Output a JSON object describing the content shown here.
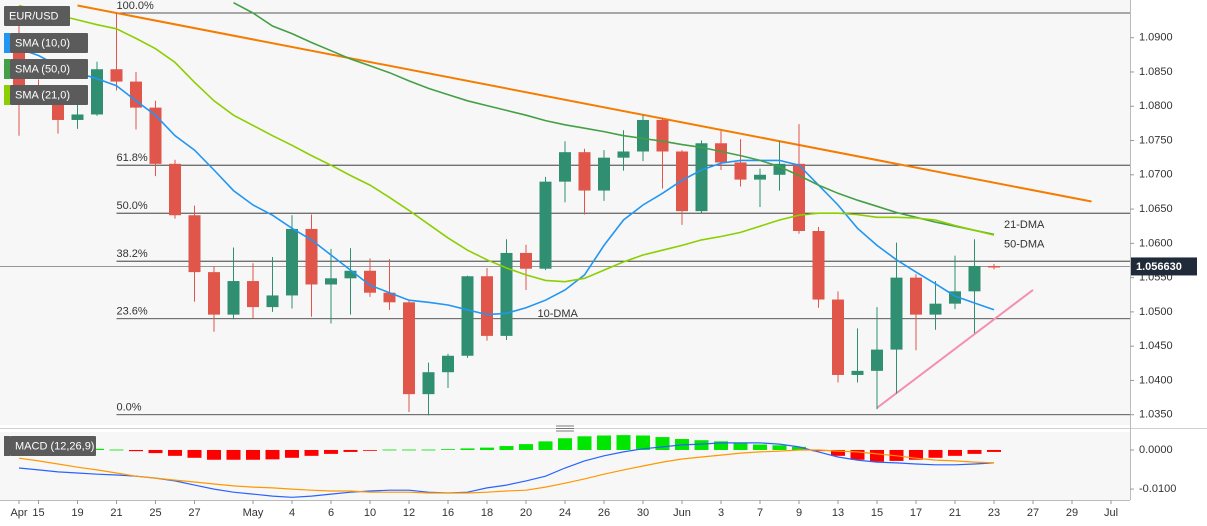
{
  "chart_data": [
    {
      "type": "candlestick",
      "title": "EUR/USD",
      "categories": [
        "Apr",
        "15",
        null,
        "19",
        null,
        "21",
        null,
        "25",
        null,
        "27",
        null,
        null,
        "May",
        null,
        "4",
        null,
        "6",
        null,
        "10",
        null,
        "12",
        null,
        "16",
        null,
        "18",
        null,
        "20",
        null,
        "24",
        null,
        "26",
        null,
        "30",
        null,
        "Jun",
        null,
        "3",
        null,
        "7",
        null,
        "9",
        null,
        "13",
        null,
        "15",
        null,
        "17",
        null,
        "21",
        null,
        "23",
        null,
        "27",
        null,
        "29",
        null,
        "Jul"
      ],
      "open": [
        1.089,
        1.0826,
        1.0808,
        1.078,
        1.0788,
        1.0854,
        1.0836,
        1.0798,
        1.0716,
        1.0641,
        1.0558,
        1.0496,
        1.0545,
        1.0507,
        1.0524,
        1.0621,
        1.054,
        1.0549,
        1.056,
        1.0528,
        1.0514,
        1.038,
        1.0412,
        1.0436,
        1.0552,
        1.0465,
        1.0586,
        1.0563,
        1.069,
        1.0733,
        1.0677,
        1.0725,
        1.0734,
        1.078,
        1.0734,
        1.0647,
        1.0746,
        1.0718,
        1.0693,
        1.07,
        1.0716,
        1.0618,
        1.0518,
        1.0408,
        1.0414,
        1.0445,
        1.055,
        1.0496,
        1.0512,
        1.053,
        1.0567,
        null,
        null,
        null,
        null,
        null,
        null
      ],
      "high": [
        1.0924,
        1.0839,
        1.0817,
        1.0807,
        1.0865,
        1.0936,
        1.085,
        1.0808,
        1.0722,
        1.0655,
        1.0567,
        1.0594,
        1.0571,
        1.058,
        1.0641,
        1.0642,
        1.0592,
        1.0593,
        1.0578,
        1.0577,
        1.0516,
        1.0426,
        1.0439,
        1.0553,
        1.0564,
        1.0606,
        1.0598,
        1.0697,
        1.0749,
        1.0738,
        1.0736,
        1.0765,
        1.0787,
        1.0783,
        1.0736,
        1.075,
        1.0764,
        1.0752,
        1.0709,
        1.0749,
        1.0774,
        1.0624,
        1.053,
        1.0476,
        1.0507,
        1.0601,
        1.0555,
        1.0545,
        1.0582,
        1.0606,
        1.057,
        null,
        null,
        null,
        null,
        null,
        null
      ],
      "low": [
        1.0757,
        1.0804,
        1.076,
        1.0767,
        1.0786,
        1.0823,
        1.0766,
        1.0698,
        1.0636,
        1.0515,
        1.0471,
        1.0489,
        1.049,
        1.05,
        1.0505,
        1.0493,
        1.0483,
        1.0496,
        1.0522,
        1.0503,
        1.0354,
        1.0349,
        1.0389,
        1.0433,
        1.0458,
        1.0459,
        1.0532,
        1.0561,
        1.066,
        1.0642,
        1.0662,
        1.0706,
        1.072,
        1.068,
        1.0627,
        1.0644,
        1.0707,
        1.0683,
        1.0653,
        1.0677,
        1.0614,
        1.0506,
        1.0397,
        1.0397,
        1.0358,
        1.0381,
        1.0444,
        1.0474,
        1.0504,
        1.0469,
        1.0562,
        null,
        null,
        null,
        null,
        null,
        null
      ],
      "close": [
        1.0826,
        1.0808,
        1.078,
        1.0788,
        1.0854,
        1.0836,
        1.0798,
        1.0716,
        1.0641,
        1.0558,
        1.0496,
        1.0545,
        1.0507,
        1.0524,
        1.0621,
        1.054,
        1.0549,
        1.056,
        1.0528,
        1.0514,
        1.038,
        1.0412,
        1.0436,
        1.0552,
        1.0465,
        1.0586,
        1.0563,
        1.069,
        1.0733,
        1.0677,
        1.0725,
        1.0734,
        1.078,
        1.0734,
        1.0647,
        1.0746,
        1.0718,
        1.0693,
        1.07,
        1.0716,
        1.0618,
        1.0518,
        1.0408,
        1.0414,
        1.0445,
        1.055,
        1.0496,
        1.0512,
        1.053,
        1.0567,
        1.0566,
        null,
        null,
        null,
        null,
        null,
        null
      ],
      "up_color": "#2f8f70",
      "down_color": "#e0564b",
      "series": [
        {
          "name": "SMA (10,0)",
          "label": "10-DMA",
          "color": "#2196f3",
          "values": [
            1.0884,
            1.0874,
            1.0859,
            1.0849,
            1.084,
            1.083,
            1.0808,
            1.0787,
            1.0757,
            1.0736,
            1.0707,
            1.0677,
            1.0656,
            1.0641,
            1.0622,
            1.0605,
            1.0583,
            1.0561,
            1.0539,
            1.0528,
            1.0517,
            1.0514,
            1.051,
            1.0503,
            1.0496,
            1.0498,
            1.0506,
            1.0517,
            1.0532,
            1.0554,
            1.0597,
            1.0634,
            1.0656,
            1.0673,
            1.0692,
            1.0707,
            1.0717,
            1.0721,
            1.0721,
            1.0721,
            1.0714,
            1.0685,
            1.0656,
            1.0622,
            1.0597,
            1.0576,
            1.0558,
            1.0541,
            1.0523,
            1.0513,
            1.0503,
            null,
            null,
            null,
            null,
            null,
            null
          ]
        },
        {
          "name": "SMA (50,0)",
          "label": "50-DMA",
          "color": "#43a047",
          "values": [
            null,
            null,
            null,
            null,
            null,
            null,
            null,
            null,
            null,
            null,
            null,
            1.0951,
            1.0936,
            1.0917,
            1.0906,
            1.0893,
            1.0881,
            1.0869,
            1.0859,
            1.0849,
            1.0837,
            1.0826,
            1.0817,
            1.0808,
            1.0801,
            1.0794,
            1.0787,
            1.0779,
            1.0773,
            1.0768,
            1.0763,
            1.0757,
            1.0753,
            1.0749,
            1.0744,
            1.074,
            1.0734,
            1.0728,
            1.0721,
            1.0712,
            1.0699,
            1.0685,
            1.0673,
            1.0663,
            1.0654,
            1.0645,
            1.0638,
            1.0631,
            1.0625,
            1.0619,
            1.0613,
            null,
            null,
            null,
            null,
            null,
            null
          ]
        },
        {
          "name": "SMA (21,0)",
          "label": "21-DMA",
          "color": "#8ccf00",
          "values": [
            1.0947,
            1.0939,
            1.0933,
            1.0926,
            1.0919,
            1.0913,
            1.0899,
            1.0884,
            1.0864,
            1.0835,
            1.0808,
            1.0787,
            1.0772,
            1.0757,
            1.0743,
            1.0728,
            1.0714,
            1.0699,
            1.0685,
            1.0667,
            1.0648,
            1.0628,
            1.0608,
            1.059,
            1.0576,
            1.0564,
            1.0554,
            1.0546,
            1.0544,
            1.0549,
            1.0561,
            1.0573,
            1.0583,
            1.059,
            1.0597,
            1.0605,
            1.061,
            1.0616,
            1.0625,
            1.0634,
            1.0641,
            1.0644,
            1.0644,
            1.0642,
            1.0638,
            1.0638,
            1.0637,
            1.0634,
            1.0626,
            1.0619,
            1.0612,
            null,
            null,
            null,
            null,
            null,
            null
          ]
        }
      ],
      "trendlines": [
        {
          "color": "#f57c00",
          "x": [
            3,
            55
          ],
          "y": [
            1.0947,
            1.0661
          ]
        },
        {
          "color": "#f48fb1",
          "x": [
            44,
            52
          ],
          "y": [
            1.036,
            1.0532
          ]
        }
      ],
      "fib_levels": [
        {
          "label": "100.0%",
          "value": 1.0936
        },
        {
          "label": "61.8%",
          "value": 1.0714
        },
        {
          "label": "50.0%",
          "value": 1.0644
        },
        {
          "label": "38.2%",
          "value": 1.0574
        },
        {
          "label": "23.6%",
          "value": 1.049
        },
        {
          "label": "0.0%",
          "value": 1.035
        }
      ],
      "fib_start": 5,
      "last_price": {
        "value": 1.05663,
        "label": "1.056630"
      },
      "ylim": [
        1.0335,
        1.0955
      ],
      "yticks": [
        {
          "value": 1.035,
          "label": "1.0350"
        },
        {
          "value": 1.04,
          "label": "1.0400"
        },
        {
          "value": 1.045,
          "label": "1.0450"
        },
        {
          "value": 1.05,
          "label": "1.0500"
        },
        {
          "value": 1.055,
          "label": "1.0550"
        },
        {
          "value": 1.06,
          "label": "1.0600"
        },
        {
          "value": 1.065,
          "label": "1.0650"
        },
        {
          "value": 1.07,
          "label": "1.0700"
        },
        {
          "value": 1.075,
          "label": "1.0750"
        },
        {
          "value": 1.08,
          "label": "1.0800"
        },
        {
          "value": 1.085,
          "label": "1.0850"
        },
        {
          "value": 1.09,
          "label": "1.0900"
        }
      ]
    },
    {
      "type": "macd",
      "title": "MACD (12,26,9)",
      "histogram": {
        "up_color": "#00e600",
        "down_color": "#ff0000",
        "values": [
          0.0002,
          0.0003,
          0.0004,
          0.0004,
          0.0003,
          0.0001,
          -0.0003,
          -0.0008,
          -0.0015,
          -0.002,
          -0.0025,
          -0.0025,
          -0.0025,
          -0.0024,
          -0.002,
          -0.0015,
          -0.001,
          -0.0005,
          -0.0001,
          0.0001,
          0.0001,
          0.0001,
          0.0002,
          0.0004,
          0.0006,
          0.001,
          0.0015,
          0.0022,
          0.003,
          0.0035,
          0.0037,
          0.0038,
          0.0037,
          0.0033,
          0.0028,
          0.0025,
          0.0022,
          0.0018,
          0.0014,
          0.0012,
          0.0008,
          -0.0003,
          -0.0015,
          -0.0025,
          -0.003,
          -0.0028,
          -0.0025,
          -0.002,
          -0.0015,
          -0.001,
          -0.0005,
          null,
          null,
          null,
          null,
          null,
          null
        ]
      },
      "lines": [
        {
          "color": "#2962ff",
          "values": [
            -0.0046,
            -0.0051,
            -0.0056,
            -0.0059,
            -0.0062,
            -0.0064,
            -0.0067,
            -0.0072,
            -0.0079,
            -0.009,
            -0.01,
            -0.0108,
            -0.0113,
            -0.0118,
            -0.0121,
            -0.0118,
            -0.0113,
            -0.0108,
            -0.0105,
            -0.0103,
            -0.0103,
            -0.0108,
            -0.011,
            -0.0108,
            -0.0097,
            -0.009,
            -0.0079,
            -0.0067,
            -0.0046,
            -0.0028,
            -0.0015,
            -0.0005,
            0.0003,
            0.0008,
            0.0013,
            0.0015,
            0.0018,
            0.0018,
            0.0018,
            0.0015,
            0.0008,
            -0.0005,
            -0.0018,
            -0.0026,
            -0.0031,
            -0.0033,
            -0.0036,
            -0.0038,
            -0.0038,
            -0.0036,
            -0.0033,
            null,
            null,
            null,
            null,
            null,
            null
          ]
        },
        {
          "color": "#ff9800",
          "values": [
            -0.0021,
            -0.0028,
            -0.0036,
            -0.0044,
            -0.0051,
            -0.0059,
            -0.0067,
            -0.0072,
            -0.0077,
            -0.0082,
            -0.0087,
            -0.0092,
            -0.0095,
            -0.0097,
            -0.01,
            -0.0103,
            -0.0105,
            -0.0105,
            -0.0108,
            -0.0108,
            -0.0108,
            -0.011,
            -0.011,
            -0.011,
            -0.0108,
            -0.0105,
            -0.0103,
            -0.0095,
            -0.0085,
            -0.0074,
            -0.0062,
            -0.0051,
            -0.0041,
            -0.0031,
            -0.0023,
            -0.0018,
            -0.0013,
            -0.0008,
            -0.0005,
            -0.0003,
            0,
            0,
            -0.0003,
            -0.0005,
            -0.001,
            -0.0015,
            -0.0021,
            -0.0026,
            -0.0028,
            -0.0031,
            -0.0033,
            null,
            null,
            null,
            null,
            null,
            null
          ]
        }
      ],
      "ylim": [
        -0.0128,
        0.0046
      ],
      "yticks": [
        {
          "value": 0,
          "label": "0.0000"
        },
        {
          "value": -0.01,
          "label": "-0.0100"
        }
      ]
    }
  ]
}
